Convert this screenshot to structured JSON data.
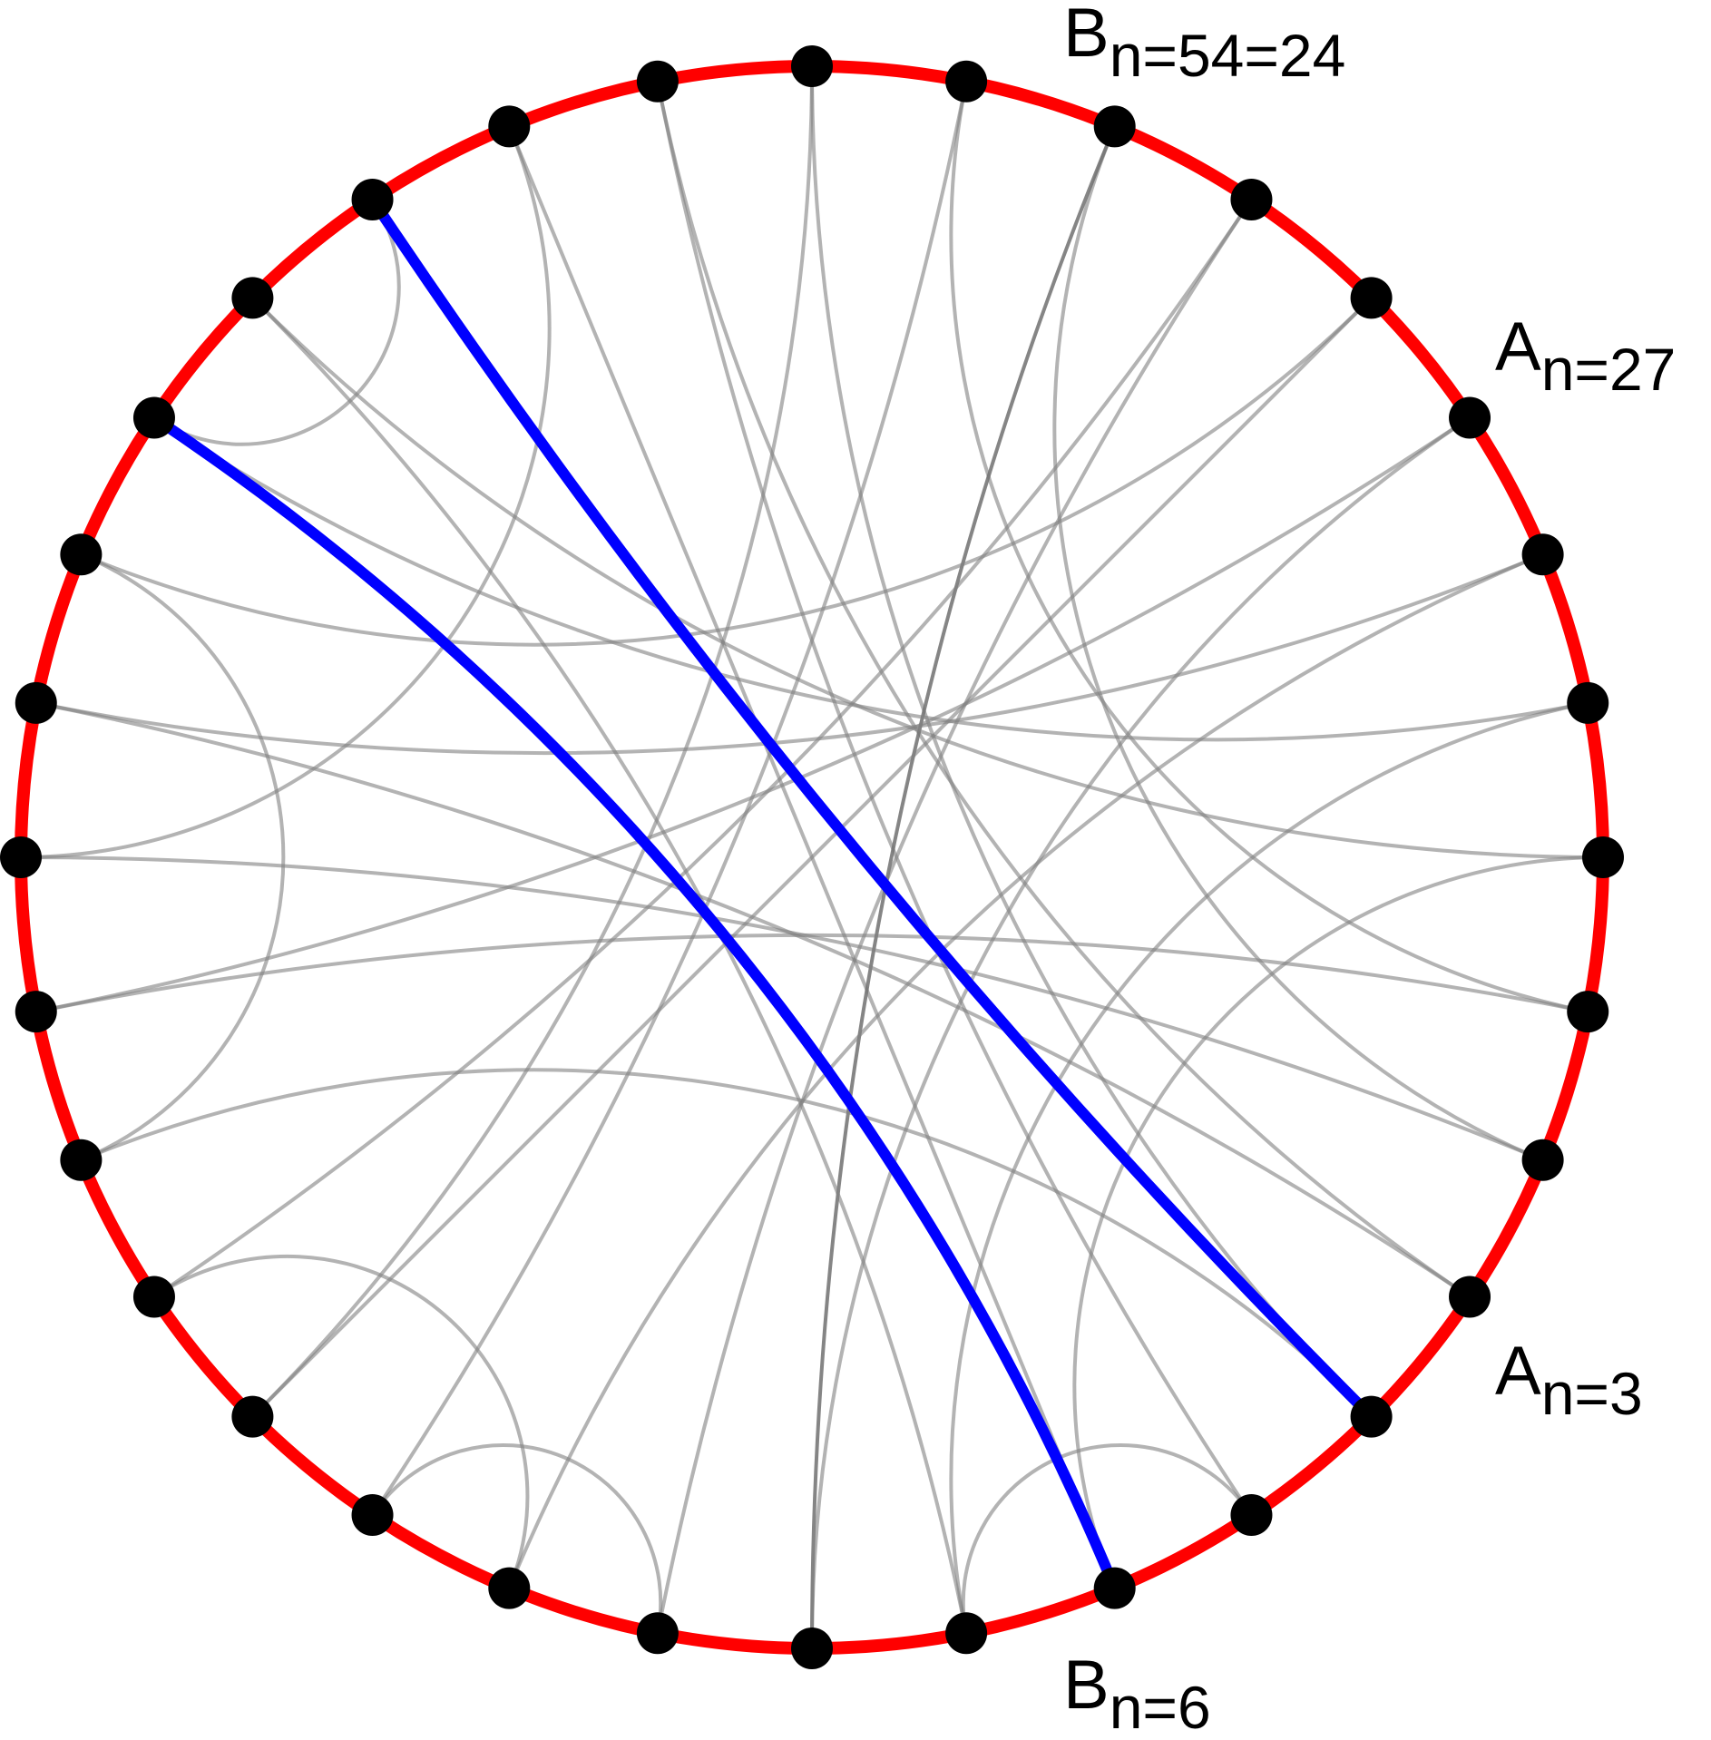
{
  "colors": {
    "circle": "#ff0000",
    "highlight": "#0000ff",
    "chord": "#808080",
    "chord_dark": "#707070",
    "node": "#000000",
    "background": "#ffffff"
  },
  "node_count": 32,
  "nodes": [
    0,
    1,
    2,
    3,
    4,
    5,
    6,
    7,
    8,
    9,
    10,
    11,
    12,
    13,
    14,
    15,
    16,
    17,
    18,
    19,
    20,
    21,
    22,
    23,
    24,
    25,
    26,
    27,
    28,
    29,
    30,
    31
  ],
  "chords": [
    [
      10,
      16
    ],
    [
      10,
      26
    ],
    [
      9,
      29
    ],
    [
      9,
      27
    ],
    [
      8,
      28
    ],
    [
      8,
      20
    ],
    [
      7,
      21
    ],
    [
      7,
      31
    ],
    [
      6,
      30
    ],
    [
      6,
      24
    ],
    [
      5,
      19
    ],
    [
      5,
      23
    ],
    [
      4,
      20
    ],
    [
      4,
      14
    ],
    [
      3,
      17
    ],
    [
      3,
      24
    ],
    [
      2,
      15
    ],
    [
      2,
      22
    ],
    [
      1,
      13
    ],
    [
      1,
      25
    ],
    [
      0,
      12
    ],
    [
      0,
      26
    ],
    [
      31,
      17
    ],
    [
      30,
      16
    ],
    [
      29,
      15
    ],
    [
      28,
      18
    ],
    [
      27,
      25
    ],
    [
      23,
      21
    ],
    [
      22,
      19
    ],
    [
      13,
      11
    ],
    [
      12,
      25
    ],
    [
      14,
      18
    ]
  ],
  "dark_chords": [
    [
      6,
      24
    ]
  ],
  "highlight_chords": [
    [
      11,
      28
    ],
    [
      13,
      26
    ]
  ],
  "labels": [
    {
      "node": 28,
      "main": "B",
      "sub": "n=54=24"
    },
    {
      "node": 26,
      "main": "A",
      "sub": "n=27"
    },
    {
      "node": 13,
      "main": "A",
      "sub": "n=3"
    },
    {
      "node": 11,
      "main": "B",
      "sub": "n=6"
    }
  ]
}
